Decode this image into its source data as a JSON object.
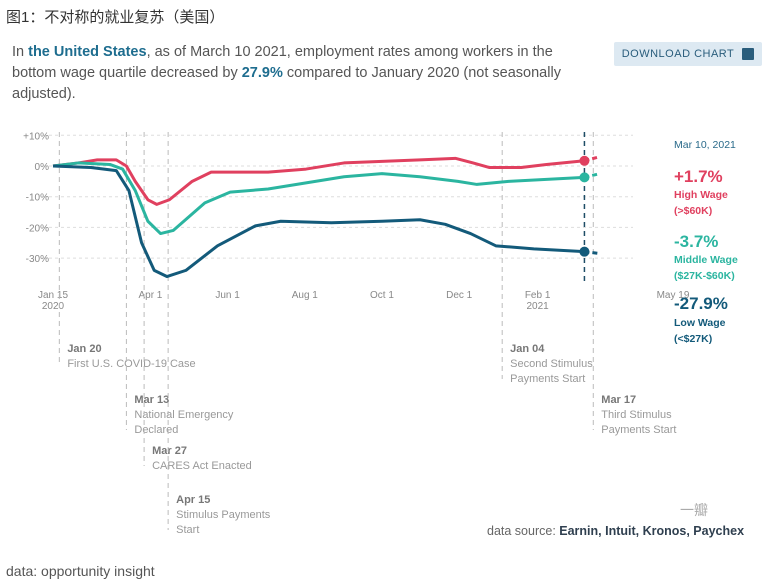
{
  "title": "图1：不对称的就业复苏（美国）",
  "intro": {
    "p1": "In ",
    "country": "the United States",
    "p2": ", as of March 10 2021, employment rates among workers in the bottom wage quartile decreased by ",
    "pct": "27.9%",
    "p3": " compared to January 2020 (not seasonally adjusted)."
  },
  "download_label": "DOWNLOAD CHART",
  "source_label": "data source: ",
  "source_names": "Earnin, Intuit, Kronos, Paychex",
  "watermark": "一瓣",
  "footer": "data: opportunity insight",
  "chart_data": {
    "type": "line",
    "x_unit": "days since Jan 15 2020",
    "xlim": [
      0,
      490
    ],
    "ylim": [
      -38,
      10
    ],
    "yticks": [
      {
        "v": 10,
        "label": "+10%"
      },
      {
        "v": 0,
        "label": "0%"
      },
      {
        "v": -10,
        "label": "-10%"
      },
      {
        "v": -20,
        "label": "-20%"
      },
      {
        "v": -30,
        "label": "-30%"
      }
    ],
    "xticks": [
      {
        "d": 0,
        "label": "Jan 15",
        "sub": "2020"
      },
      {
        "d": 77,
        "label": "Apr 1"
      },
      {
        "d": 138,
        "label": "Jun 1"
      },
      {
        "d": 199,
        "label": "Aug 1"
      },
      {
        "d": 260,
        "label": "Oct 1"
      },
      {
        "d": 321,
        "label": "Dec 1"
      },
      {
        "d": 383,
        "label": "Feb 1",
        "sub": "2021"
      },
      {
        "d": 490,
        "label": "May 19"
      }
    ],
    "current": {
      "d": 420,
      "label": "Mar 10, 2021"
    },
    "series": [
      {
        "name": "High Wage",
        "range": "(>$60K)",
        "value": "+1.7%",
        "color": "#e0405f",
        "points": [
          [
            0,
            0
          ],
          [
            20,
            1
          ],
          [
            35,
            2
          ],
          [
            50,
            2
          ],
          [
            58,
            0
          ],
          [
            65,
            -5
          ],
          [
            75,
            -11
          ],
          [
            82,
            -12.5
          ],
          [
            92,
            -11
          ],
          [
            110,
            -5
          ],
          [
            125,
            -2
          ],
          [
            170,
            -2
          ],
          [
            200,
            -1
          ],
          [
            230,
            1
          ],
          [
            260,
            1.5
          ],
          [
            290,
            2
          ],
          [
            318,
            2.5
          ],
          [
            332,
            1
          ],
          [
            345,
            -0.5
          ],
          [
            370,
            -0.5
          ],
          [
            390,
            0.5
          ],
          [
            420,
            1.7
          ]
        ],
        "projection": [
          [
            420,
            1.7
          ],
          [
            432,
            3
          ]
        ]
      },
      {
        "name": "Middle Wage",
        "range": "($27K-$60K)",
        "value": "-3.7%",
        "color": "#2bb5a0",
        "points": [
          [
            0,
            0
          ],
          [
            20,
            1
          ],
          [
            45,
            0.5
          ],
          [
            55,
            -1
          ],
          [
            65,
            -8
          ],
          [
            75,
            -18
          ],
          [
            85,
            -22
          ],
          [
            95,
            -21
          ],
          [
            120,
            -12
          ],
          [
            140,
            -8.5
          ],
          [
            170,
            -7.5
          ],
          [
            200,
            -5.5
          ],
          [
            230,
            -3.5
          ],
          [
            260,
            -2.5
          ],
          [
            290,
            -3.5
          ],
          [
            320,
            -5
          ],
          [
            335,
            -6
          ],
          [
            360,
            -5
          ],
          [
            420,
            -3.7
          ]
        ],
        "projection": [
          [
            420,
            -3.7
          ],
          [
            432,
            -2.5
          ]
        ]
      },
      {
        "name": "Low Wage",
        "range": "(<$27K)",
        "value": "-27.9%",
        "color": "#135a7a",
        "points": [
          [
            0,
            0
          ],
          [
            30,
            -0.5
          ],
          [
            50,
            -1.5
          ],
          [
            60,
            -8
          ],
          [
            70,
            -25
          ],
          [
            80,
            -34
          ],
          [
            90,
            -36
          ],
          [
            105,
            -34
          ],
          [
            130,
            -26
          ],
          [
            160,
            -19.5
          ],
          [
            180,
            -18
          ],
          [
            220,
            -18.5
          ],
          [
            260,
            -18
          ],
          [
            290,
            -17.5
          ],
          [
            310,
            -19
          ],
          [
            330,
            -22
          ],
          [
            350,
            -26
          ],
          [
            380,
            -27
          ],
          [
            420,
            -27.9
          ]
        ],
        "projection": [
          [
            420,
            -27.9
          ],
          [
            432,
            -28.5
          ]
        ]
      }
    ],
    "events": [
      {
        "d": 5,
        "date": "Jan 20",
        "text": [
          "First U.S. COVID-19 Case"
        ],
        "row": 0
      },
      {
        "d": 58,
        "date": "Mar 13",
        "text": [
          "National Emergency",
          "Declared"
        ],
        "row": 1
      },
      {
        "d": 72,
        "date": "Mar 27",
        "text": [
          "CARES Act Enacted"
        ],
        "row": 2
      },
      {
        "d": 91,
        "date": "Apr 15",
        "text": [
          "Stimulus Payments",
          "Start"
        ],
        "row": 3
      },
      {
        "d": 355,
        "date": "Jan 04",
        "text": [
          "Second Stimulus",
          "Payments Start"
        ],
        "row": 0
      },
      {
        "d": 427,
        "date": "Mar 17",
        "text": [
          "Third Stimulus",
          "Payments Start"
        ],
        "row": 1
      }
    ]
  }
}
